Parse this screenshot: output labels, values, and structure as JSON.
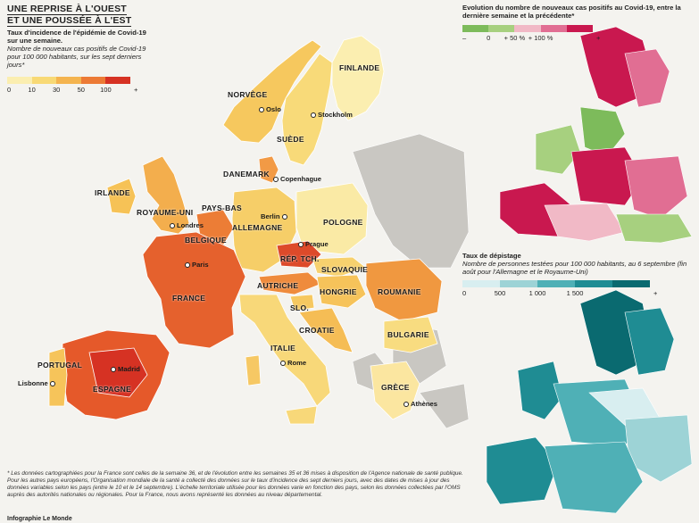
{
  "headline": {
    "line1": "UNE REPRISE À L'OUEST",
    "line2": "ET UNE POUSSÉE À L'EST"
  },
  "main_legend": {
    "title": "Taux d'incidence de l'épidémie de Covid-19 sur une semaine.",
    "subtitle": "Nombre de nouveaux cas positifs de Covid-19 pour 100 000 habitants, sur les sept derniers jours*",
    "ticks": [
      "0",
      "10",
      "30",
      "50",
      "100",
      "+"
    ],
    "colors": [
      "#fbeeb0",
      "#f8d975",
      "#f4b44f",
      "#ec7a35",
      "#d63223"
    ]
  },
  "evolution_legend": {
    "title": "Evolution du nombre de nouveaux cas positifs au Covid-19, entre la dernière semaine et la précédente*",
    "ticks": [
      "–",
      "0",
      "+ 50 %",
      "+ 100 %",
      "+"
    ],
    "colors": [
      "#7dbb5b",
      "#a7d07f",
      "#f1b9c6",
      "#e16e93",
      "#c9184f"
    ]
  },
  "testing_legend": {
    "title": "Taux de dépistage",
    "subtitle": "Nombre de personnes testées pour 100 000 habitants, au 6 septembre (fin août pour l'Allemagne et le Royaume-Uni)",
    "ticks": [
      "0",
      "500",
      "1 000",
      "1 500",
      "+"
    ],
    "colors": [
      "#d8eef0",
      "#9dd3d6",
      "#4fb0b6",
      "#1f8c93",
      "#0a6a70"
    ]
  },
  "countries": [
    "FINLANDE",
    "NORVÈGE",
    "SUÈDE",
    "DANEMARK",
    "IRLANDE",
    "ROYAUME-UNI",
    "PAYS-BAS",
    "BELGIQUE",
    "ALLEMAGNE",
    "POLOGNE",
    "RÉP. TCH.",
    "SLOVAQUIE",
    "AUTRICHE",
    "HONGRIE",
    "ROUMANIE",
    "FRANCE",
    "SLO.",
    "CROATIE",
    "BULGARIE",
    "ITALIE",
    "PORTUGAL",
    "ESPAGNE",
    "GRÈCE"
  ],
  "cities": [
    "Oslo",
    "Stockholm",
    "Copenhague",
    "Berlin",
    "Londres",
    "Prague",
    "Paris",
    "Rome",
    "Madrid",
    "Lisbonne",
    "Athènes"
  ],
  "footnote": "* Les données cartographiées pour la France sont celles de la semaine 36, et de l'évolution entre les semaines 35 et 36 mises à disposition de l'Agence nationale de santé publique. Pour les autres pays européens, l'Organisation mondiale de la santé a collecté des données sur le taux d'incidence des sept derniers jours, avec des dates de mises à jour des données variables selon les pays (entre le 10 et le 14 septembre). L'échelle territoriale utilisée pour les données varie en fonction des pays, selon les données collectées par l'OMS auprès des autorités nationales ou régionales. Pour la France, nous avons représenté les données au niveau départemental.",
  "credit": "Infographie Le Monde"
}
